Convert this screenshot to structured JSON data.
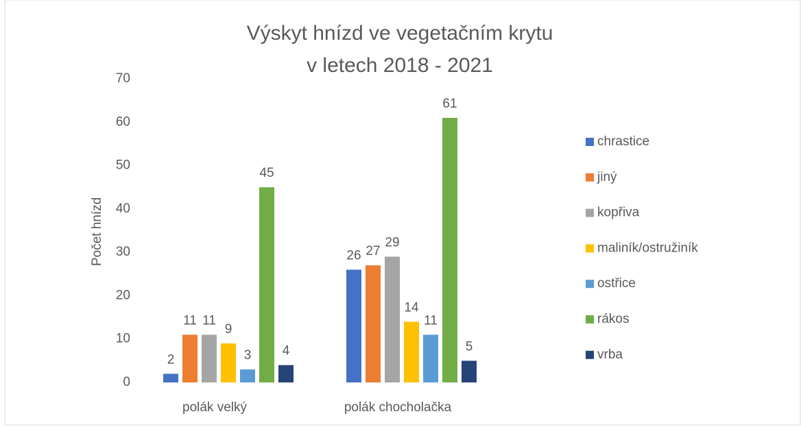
{
  "chart_data": {
    "type": "bar",
    "title": [
      "Výskyt hnízd ve vegetačním krytu",
      "v letech 2018 - 2021"
    ],
    "y_label": "Počet hnízd",
    "categories": [
      "polák velký",
      "polák chocholačka"
    ],
    "series": [
      {
        "name": "chrastice",
        "color": "#4472c4",
        "values": [
          2,
          26
        ]
      },
      {
        "name": "jiný",
        "color": "#ed7d31",
        "values": [
          11,
          27
        ]
      },
      {
        "name": "kopřiva",
        "color": "#a5a5a5",
        "values": [
          11,
          29
        ]
      },
      {
        "name": "maliník/ostružiník",
        "color": "#ffc000",
        "values": [
          9,
          14
        ]
      },
      {
        "name": "ostřice",
        "color": "#5b9bd5",
        "values": [
          3,
          11
        ]
      },
      {
        "name": "rákos",
        "color": "#70ad47",
        "values": [
          45,
          61
        ]
      },
      {
        "name": "vrba",
        "color": "#264478",
        "values": [
          4,
          5
        ]
      }
    ],
    "ylim": [
      0,
      70
    ],
    "yticks": [
      0,
      10,
      20,
      30,
      40,
      50,
      60,
      70
    ],
    "grid": false,
    "legend": "right"
  }
}
